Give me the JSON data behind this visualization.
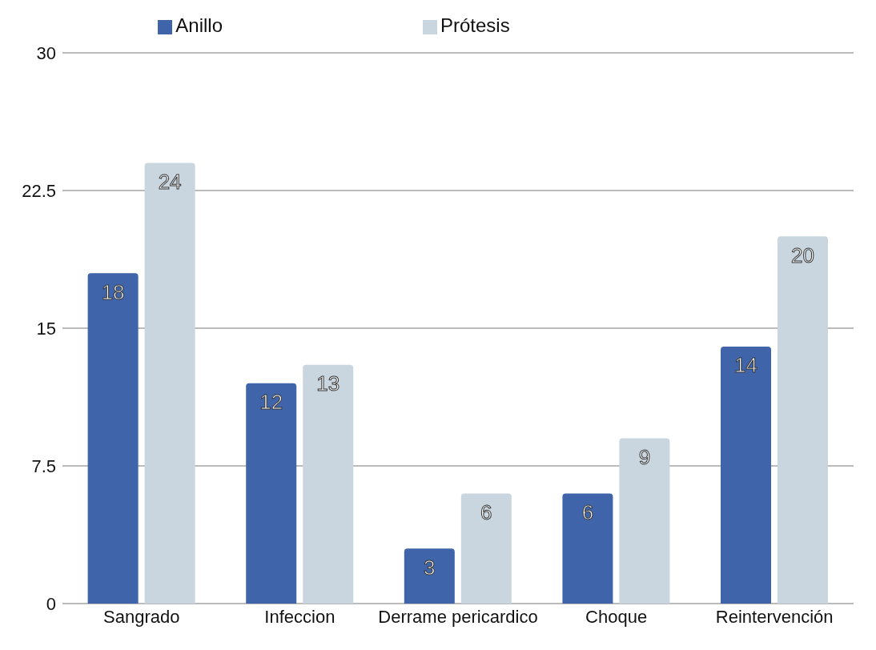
{
  "chart_data": {
    "type": "bar",
    "categories": [
      "Sangrado",
      "Infeccion",
      "Derrame pericardico",
      "Choque",
      "Reintervención"
    ],
    "series": [
      {
        "name": "Anillo",
        "color": "#3f64aa",
        "values": [
          18,
          12,
          3,
          6,
          14
        ]
      },
      {
        "name": "Prótesis",
        "color": "#c9d6e0",
        "values": [
          24,
          13,
          6,
          9,
          20
        ]
      }
    ],
    "ylim": [
      0,
      30
    ],
    "yticks": [
      0,
      7.5,
      15,
      22.5,
      30
    ],
    "grid": "y",
    "legend": "top",
    "data_labels": true
  }
}
